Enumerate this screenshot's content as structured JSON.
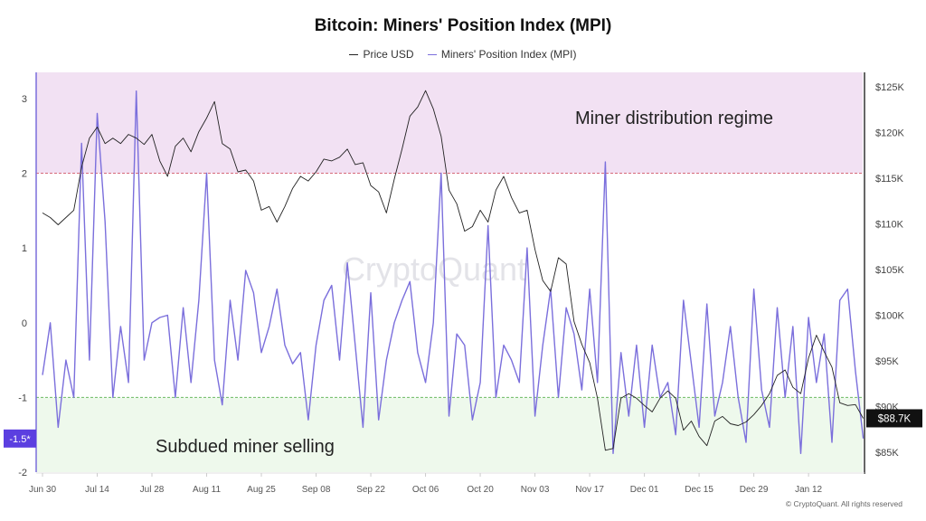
{
  "chart_data": {
    "type": "line",
    "title": "Bitcoin: Miners' Position Index (MPI)",
    "legend_placement": "top-center",
    "series": [
      {
        "name": "Price USD",
        "axis": "right",
        "unit": "K USD",
        "color": "#222222",
        "values": [
          111.2,
          110.7,
          109.9,
          110.7,
          111.5,
          116.2,
          119.4,
          120.6,
          118.8,
          119.4,
          118.8,
          119.8,
          119.4,
          118.7,
          119.8,
          116.9,
          115.2,
          118.5,
          119.4,
          117.9,
          120.1,
          121.6,
          123.4,
          118.8,
          118.2,
          115.7,
          115.9,
          114.7,
          111.5,
          111.9,
          110.2,
          111.9,
          113.9,
          115.2,
          114.7,
          115.7,
          117.1,
          116.9,
          117.3,
          118.2,
          116.5,
          116.7,
          114.2,
          113.5,
          111.2,
          114.9,
          118.2,
          121.8,
          122.8,
          124.6,
          122.6,
          119.6,
          113.7,
          112.2,
          109.2,
          109.7,
          111.5,
          110.2,
          113.7,
          115.2,
          112.9,
          111.2,
          111.5,
          107.2,
          103.8,
          102.6,
          106.3,
          105.6,
          99.3,
          96.8,
          94.8,
          90.9,
          85.2,
          85.4,
          90.9,
          91.4,
          90.9,
          90.1,
          89.4,
          90.9,
          91.7,
          90.9,
          87.4,
          88.4,
          86.7,
          85.7,
          88.4,
          88.9,
          88.1,
          87.9,
          88.3,
          89.1,
          90.1,
          91.4,
          93.4,
          94.0,
          92.1,
          91.4,
          95.3,
          97.8,
          96.0,
          94.3,
          90.4,
          90.1,
          90.2,
          88.7
        ]
      },
      {
        "name": "Miners' Position Index (MPI)",
        "axis": "left",
        "color": "#7b6fdc",
        "values": [
          -0.7,
          0,
          -1.4,
          -0.5,
          -1.0,
          2.4,
          -0.5,
          2.8,
          1.35,
          -1.0,
          -0.05,
          -0.8,
          3.1,
          -0.5,
          0,
          0.07,
          0.1,
          -1.0,
          0.2,
          -0.8,
          0.3,
          2.0,
          -0.5,
          -1.1,
          0.3,
          -0.5,
          0.7,
          0.4,
          -0.4,
          -0.05,
          0.45,
          -0.3,
          -0.55,
          -0.4,
          -1.3,
          -0.3,
          0.3,
          0.5,
          -0.5,
          0.8,
          -0.3,
          -1.4,
          0.4,
          -1.3,
          -0.5,
          0,
          0.3,
          0.55,
          -0.4,
          -0.8,
          0,
          2.0,
          -1.25,
          -0.15,
          -0.3,
          -1.3,
          -0.8,
          1.3,
          -1.0,
          -0.3,
          -0.5,
          -0.8,
          1.0,
          -1.25,
          -0.3,
          0.45,
          -1.0,
          0.2,
          -0.15,
          -0.9,
          0.45,
          -0.8,
          2.15,
          -1.75,
          -0.4,
          -1.25,
          -0.3,
          -1.4,
          -0.3,
          -1.0,
          -0.8,
          -1.5,
          0.3,
          -0.55,
          -1.4,
          0.25,
          -1.25,
          -0.8,
          -0.05,
          -1.0,
          -1.6,
          0.45,
          -0.9,
          -1.4,
          0.2,
          -1.0,
          -0.05,
          -1.75,
          0.07,
          -0.8,
          -0.15,
          -1.6,
          0.3,
          0.45,
          -0.65,
          -1.55
        ]
      }
    ],
    "dates": [
      "2025-06-30",
      "2025-07-02",
      "2025-07-04",
      "2025-07-06",
      "2025-07-08",
      "2025-07-10",
      "2025-07-12",
      "2025-07-14",
      "2025-07-16",
      "2025-07-18",
      "2025-07-20",
      "2025-07-22",
      "2025-07-24",
      "2025-07-26",
      "2025-07-28",
      "2025-07-30",
      "2025-08-01",
      "2025-08-03",
      "2025-08-05",
      "2025-08-07",
      "2025-08-09",
      "2025-08-11",
      "2025-08-13",
      "2025-08-15",
      "2025-08-17",
      "2025-08-19",
      "2025-08-21",
      "2025-08-23",
      "2025-08-25",
      "2025-08-27",
      "2025-08-29",
      "2025-08-31",
      "2025-09-02",
      "2025-09-04",
      "2025-09-06",
      "2025-09-08",
      "2025-09-10",
      "2025-09-12",
      "2025-09-14",
      "2025-09-16",
      "2025-09-18",
      "2025-09-20",
      "2025-09-22",
      "2025-09-24",
      "2025-09-26",
      "2025-09-28",
      "2025-09-30",
      "2025-10-02",
      "2025-10-04",
      "2025-10-06",
      "2025-10-08",
      "2025-10-10",
      "2025-10-12",
      "2025-10-14",
      "2025-10-16",
      "2025-10-18",
      "2025-10-20",
      "2025-10-22",
      "2025-10-24",
      "2025-10-26",
      "2025-10-28",
      "2025-10-30",
      "2025-11-01",
      "2025-11-03",
      "2025-11-05",
      "2025-11-07",
      "2025-11-09",
      "2025-11-11",
      "2025-11-13",
      "2025-11-15",
      "2025-11-17",
      "2025-11-19",
      "2025-11-21",
      "2025-11-23",
      "2025-11-25",
      "2025-11-27",
      "2025-11-29",
      "2025-12-01",
      "2025-12-03",
      "2025-12-05",
      "2025-12-07",
      "2025-12-09",
      "2025-12-11",
      "2025-12-13",
      "2025-12-15",
      "2025-12-17",
      "2025-12-19",
      "2025-12-21",
      "2025-12-23",
      "2025-12-25",
      "2025-12-27",
      "2025-12-29",
      "2025-12-31",
      "2026-01-02",
      "2026-01-04",
      "2026-01-06",
      "2026-01-08",
      "2026-01-10",
      "2026-01-12",
      "2026-01-14",
      "2026-01-16",
      "2026-01-18",
      "2026-01-20",
      "2026-01-22",
      "2026-01-24",
      "2026-01-26"
    ],
    "x_ticks": [
      "Jun 30",
      "Jul 14",
      "Jul 28",
      "Aug 11",
      "Aug 25",
      "Sep 08",
      "Sep 22",
      "Oct 06",
      "Oct 20",
      "Nov 03",
      "Nov 17",
      "Dec 01",
      "Dec 15",
      "Dec 29",
      "Jan 12"
    ],
    "left_ticks": [
      "3",
      "2",
      "1",
      "0",
      "-1",
      "-2"
    ],
    "left_tick_values": [
      3,
      2,
      1,
      0,
      -1,
      -2
    ],
    "right_ticks": [
      "$125K",
      "$120K",
      "$115K",
      "$110K",
      "$105K",
      "$100K",
      "$95K",
      "$90K",
      "$85K"
    ],
    "right_tick_values": [
      125,
      120,
      115,
      110,
      105,
      100,
      95,
      90,
      85
    ],
    "ylim_left": [
      -2,
      3.35
    ],
    "ylim_right": [
      82.8,
      126.6
    ],
    "grid": false,
    "zones": [
      {
        "label": "Miner distribution regime",
        "from": 2,
        "to": 3.35,
        "color": "#f2e1f3",
        "line_color": "#d66a7a"
      },
      {
        "label": "Subdued miner selling",
        "from": -2,
        "to": -1,
        "color": "#eef9ec",
        "line_color": "#6dbb63"
      }
    ],
    "last_value_left": "-1.5*",
    "last_value_right": "$88.7K",
    "watermark": "CryptoQuant"
  },
  "copyright": "© CryptoQuant. All rights reserved"
}
